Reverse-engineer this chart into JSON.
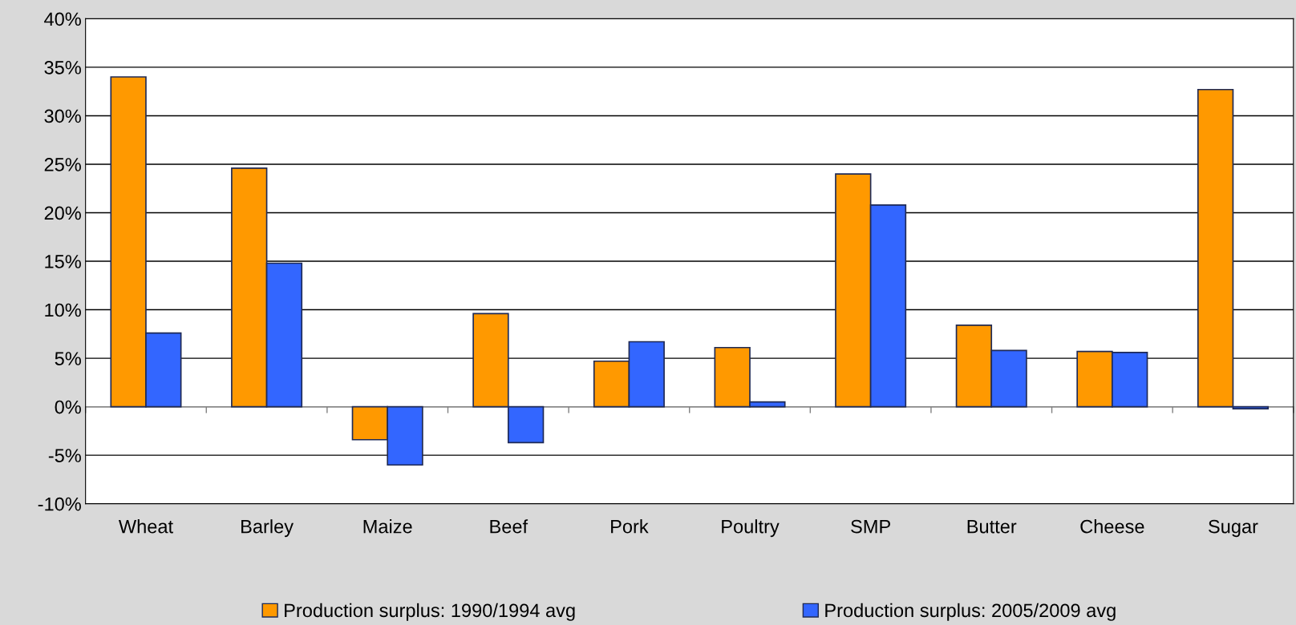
{
  "chart_data": {
    "type": "bar",
    "categories": [
      "Wheat",
      "Barley",
      "Maize",
      "Beef",
      "Pork",
      "Poultry",
      "SMP",
      "Butter",
      "Cheese",
      "Sugar"
    ],
    "series": [
      {
        "name": "Production surplus: 1990/1994 avg",
        "color": "#ff9900",
        "values": [
          34.0,
          24.6,
          -3.4,
          9.6,
          4.7,
          6.1,
          24.0,
          8.4,
          5.7,
          32.7
        ]
      },
      {
        "name": "Production surplus: 2005/2009 avg",
        "color": "#3366ff",
        "values": [
          7.6,
          14.8,
          -6.0,
          -3.7,
          6.7,
          0.5,
          20.8,
          5.8,
          5.6,
          -0.2
        ]
      }
    ],
    "ylim": [
      -10,
      40
    ],
    "yticks": [
      {
        "value": -10,
        "label": "-10%"
      },
      {
        "value": -5,
        "label": "-5%"
      },
      {
        "value": 0,
        "label": "0%"
      },
      {
        "value": 5,
        "label": "5%"
      },
      {
        "value": 10,
        "label": "10%"
      },
      {
        "value": 15,
        "label": "15%"
      },
      {
        "value": 20,
        "label": "20%"
      },
      {
        "value": 25,
        "label": "25%"
      },
      {
        "value": 30,
        "label": "30%"
      },
      {
        "value": 35,
        "label": "35%"
      },
      {
        "value": 40,
        "label": "40%"
      }
    ],
    "grid": "y",
    "legend": "bottom"
  }
}
